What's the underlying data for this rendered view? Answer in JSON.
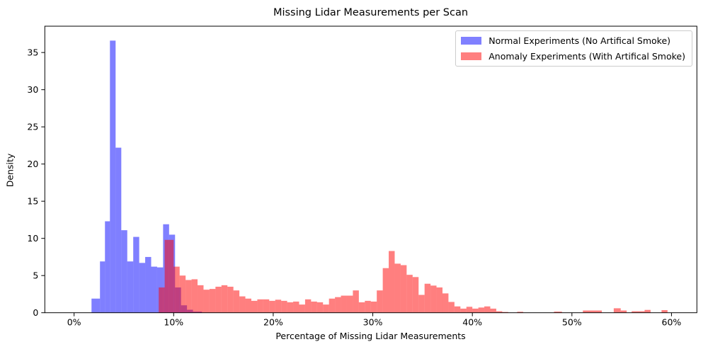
{
  "figure": {
    "title": "Missing Lidar Measurements per Scan",
    "xlabel": "Percentage of Missing Lidar Measurements",
    "ylabel": "Density"
  },
  "legend": {
    "position": "upper right",
    "items": [
      {
        "label": "Normal Experiments (No Artifical Smoke)",
        "swatch": "#8080ff"
      },
      {
        "label": "Anomaly Experiments (With Artifical Smoke)",
        "swatch": "#ff8080"
      }
    ]
  },
  "chart_data": {
    "type": "histogram",
    "title": "Missing Lidar Measurements per Scan",
    "xlabel": "Percentage of Missing Lidar Measurements",
    "ylabel": "Density",
    "grid": false,
    "xlim": [
      -2.94,
      62.55
    ],
    "ylim": [
      0,
      38.54
    ],
    "x_ticks": [
      {
        "value": 0,
        "label": "0%"
      },
      {
        "value": 10,
        "label": "10%"
      },
      {
        "value": 20,
        "label": "20%"
      },
      {
        "value": 30,
        "label": "30%"
      },
      {
        "value": 40,
        "label": "40%"
      },
      {
        "value": 50,
        "label": "50%"
      },
      {
        "value": 60,
        "label": "60%"
      }
    ],
    "y_ticks": [
      0,
      5,
      10,
      15,
      20,
      25,
      30,
      35
    ],
    "series": [
      {
        "name": "Normal Experiments (No Artifical Smoke)",
        "color": "rgba(0,0,255,0.5)",
        "bars": [
          [
            1.75,
            0.85,
            1.9
          ],
          [
            2.6,
            0.5,
            6.9
          ],
          [
            3.1,
            0.5,
            12.3
          ],
          [
            3.6,
            0.57,
            36.6
          ],
          [
            4.17,
            0.57,
            22.2
          ],
          [
            4.74,
            0.6,
            11.1
          ],
          [
            5.34,
            0.6,
            6.9
          ],
          [
            5.94,
            0.6,
            10.2
          ],
          [
            6.54,
            0.6,
            6.7
          ],
          [
            7.14,
            0.6,
            7.5
          ],
          [
            7.74,
            0.6,
            6.2
          ],
          [
            8.34,
            0.6,
            6.1
          ],
          [
            8.94,
            0.6,
            11.9
          ],
          [
            9.54,
            0.6,
            10.5
          ],
          [
            10.14,
            0.6,
            3.4
          ],
          [
            10.74,
            0.6,
            1.0
          ],
          [
            11.34,
            0.6,
            0.4
          ],
          [
            11.94,
            0.9,
            0.15
          ]
        ]
      },
      {
        "name": "Anomaly Experiments (With Artifical Smoke)",
        "color": "rgba(255,0,0,0.5)",
        "bars": [
          [
            8.5,
            0.6,
            3.4
          ],
          [
            9.1,
            0.9,
            9.8
          ],
          [
            10.0,
            0.6,
            6.2
          ],
          [
            10.6,
            0.6,
            5.0
          ],
          [
            11.2,
            0.6,
            4.4
          ],
          [
            11.8,
            0.6,
            4.5
          ],
          [
            12.4,
            0.6,
            3.7
          ],
          [
            13.0,
            0.6,
            3.1
          ],
          [
            13.6,
            0.6,
            3.2
          ],
          [
            14.2,
            0.6,
            3.5
          ],
          [
            14.8,
            0.6,
            3.7
          ],
          [
            15.4,
            0.6,
            3.5
          ],
          [
            16.0,
            0.6,
            3.0
          ],
          [
            16.6,
            0.6,
            2.2
          ],
          [
            17.2,
            0.6,
            1.9
          ],
          [
            17.8,
            0.6,
            1.6
          ],
          [
            18.4,
            0.6,
            1.8
          ],
          [
            19.0,
            0.6,
            1.8
          ],
          [
            19.6,
            0.6,
            1.6
          ],
          [
            20.2,
            0.6,
            1.75
          ],
          [
            20.8,
            0.6,
            1.6
          ],
          [
            21.4,
            0.6,
            1.4
          ],
          [
            22.0,
            0.6,
            1.5
          ],
          [
            22.6,
            0.6,
            1.1
          ],
          [
            23.2,
            0.6,
            1.8
          ],
          [
            23.8,
            0.6,
            1.5
          ],
          [
            24.4,
            0.6,
            1.4
          ],
          [
            25.0,
            0.6,
            1.1
          ],
          [
            25.6,
            0.6,
            1.9
          ],
          [
            26.2,
            0.6,
            2.1
          ],
          [
            26.8,
            0.6,
            2.3
          ],
          [
            27.4,
            0.6,
            2.3
          ],
          [
            28.0,
            0.6,
            3.0
          ],
          [
            28.6,
            0.6,
            1.4
          ],
          [
            29.2,
            0.6,
            1.6
          ],
          [
            29.8,
            0.6,
            1.5
          ],
          [
            30.4,
            0.6,
            3.0
          ],
          [
            31.0,
            0.6,
            6.0
          ],
          [
            31.6,
            0.6,
            8.3
          ],
          [
            32.2,
            0.6,
            6.6
          ],
          [
            32.8,
            0.6,
            6.4
          ],
          [
            33.4,
            0.6,
            5.1
          ],
          [
            34.0,
            0.6,
            4.8
          ],
          [
            34.6,
            0.6,
            2.4
          ],
          [
            35.2,
            0.6,
            3.9
          ],
          [
            35.8,
            0.6,
            3.65
          ],
          [
            36.4,
            0.6,
            3.4
          ],
          [
            37.0,
            0.6,
            2.6
          ],
          [
            37.6,
            0.6,
            1.45
          ],
          [
            38.2,
            0.6,
            0.85
          ],
          [
            38.8,
            0.6,
            0.55
          ],
          [
            39.4,
            0.6,
            0.8
          ],
          [
            40.0,
            0.6,
            0.55
          ],
          [
            40.6,
            0.6,
            0.7
          ],
          [
            41.2,
            0.6,
            0.85
          ],
          [
            41.8,
            0.6,
            0.55
          ],
          [
            42.4,
            0.6,
            0.2
          ],
          [
            43.0,
            0.6,
            0.1
          ],
          [
            44.5,
            0.6,
            0.13
          ],
          [
            48.2,
            0.8,
            0.15
          ],
          [
            51.1,
            1.9,
            0.3
          ],
          [
            54.2,
            0.7,
            0.6
          ],
          [
            54.9,
            0.6,
            0.3
          ],
          [
            56.0,
            1.3,
            0.2
          ],
          [
            57.3,
            0.6,
            0.38
          ],
          [
            59.0,
            0.6,
            0.35
          ]
        ]
      }
    ]
  }
}
